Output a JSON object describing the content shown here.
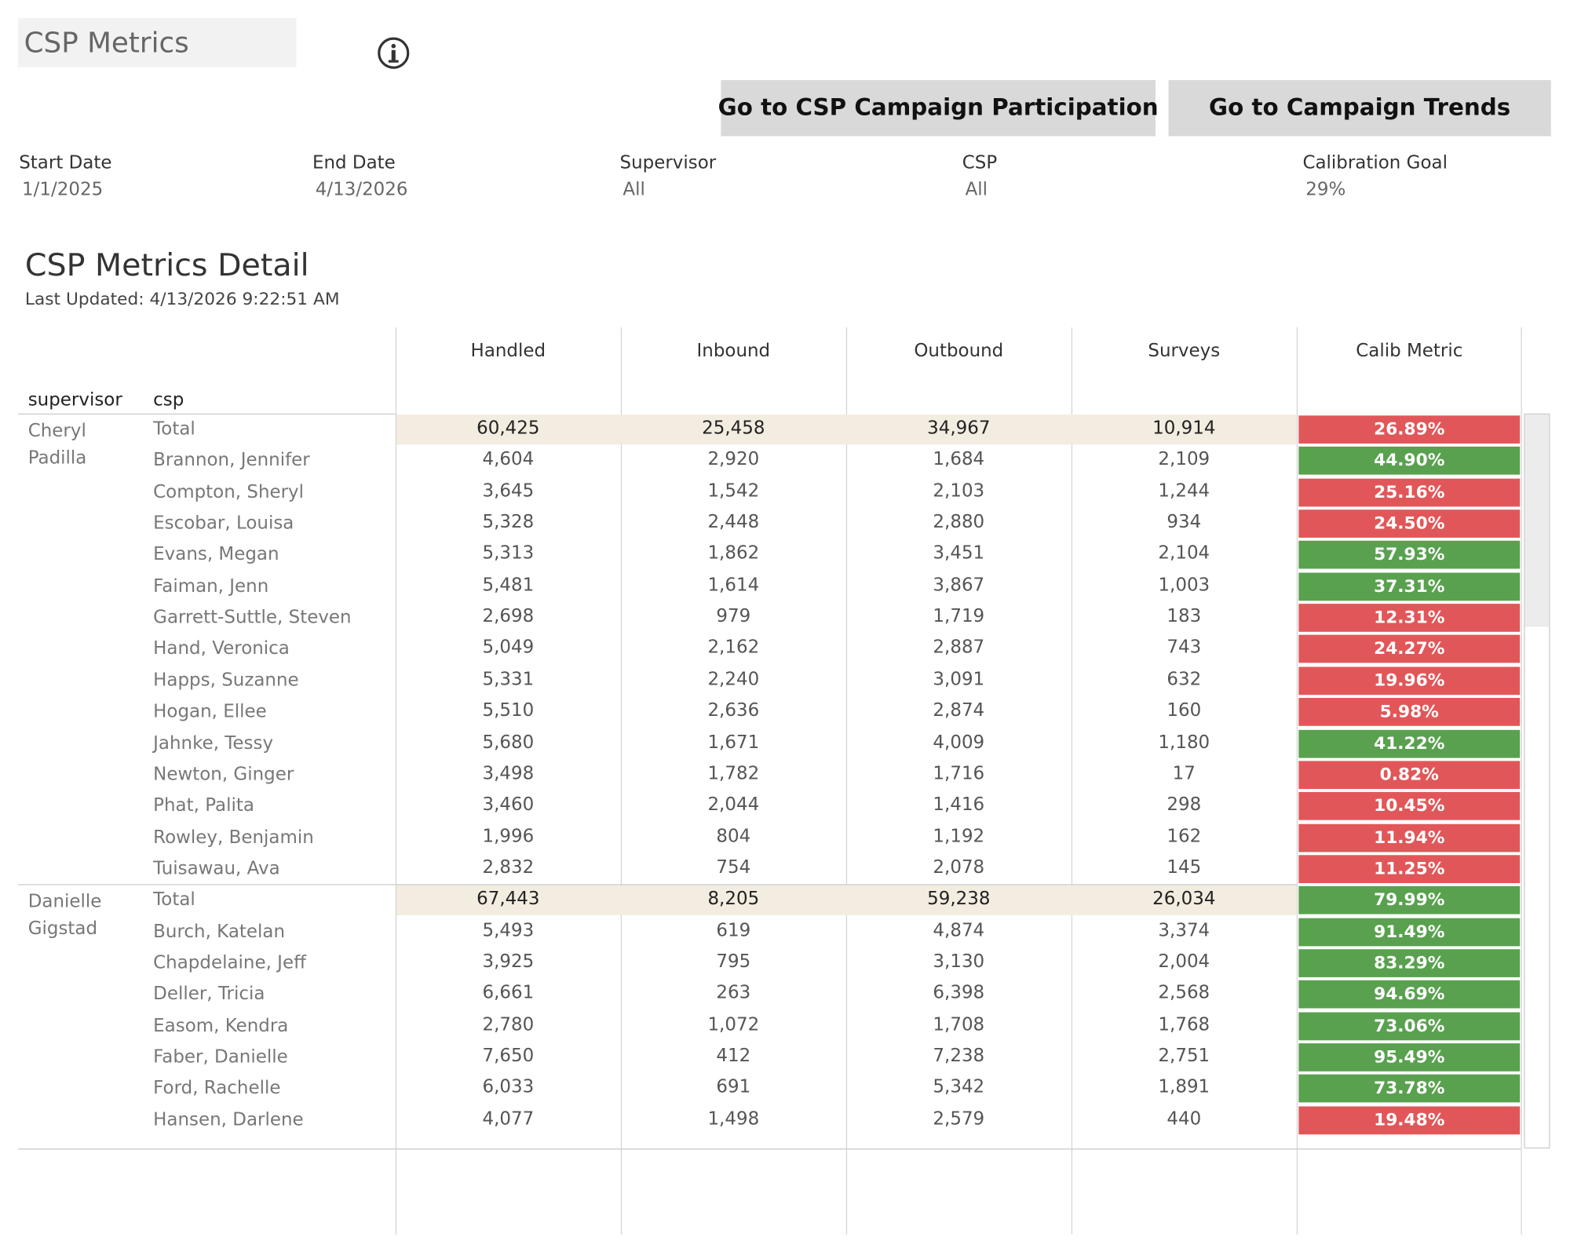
{
  "header": {
    "title": "CSP Metrics",
    "buttons": [
      "Go to CSP Campaign Participation",
      "Go to Campaign Trends"
    ]
  },
  "filters": [
    {
      "label": "Start Date",
      "value": "1/1/2025"
    },
    {
      "label": "End Date",
      "value": "4/13/2026"
    },
    {
      "label": "Supervisor",
      "value": "All"
    },
    {
      "label": "CSP",
      "value": "All"
    },
    {
      "label": "Calibration Goal",
      "value": "29%"
    }
  ],
  "table": {
    "title": "CSP Metrics Detail",
    "updated": "Last Updated: 4/13/2026 9:22:51 AM",
    "row_headers": [
      "supervisor",
      "csp"
    ],
    "columns": [
      "Handled",
      "Inbound",
      "Outbound",
      "Surveys",
      "Calib Metric"
    ],
    "total_color": "#f3ece0",
    "groups": [
      {
        "supervisor": "Cheryl Padilla",
        "rows": [
          {
            "csp": "Total",
            "values": [
              "60,425",
              "25,458",
              "34,967",
              "10,914"
            ],
            "calib": "26.89%",
            "calib_color": "#e15759"
          },
          {
            "csp": "Brannon, Jennifer",
            "values": [
              "4,604",
              "2,920",
              "1,684",
              "2,109"
            ],
            "calib": "44.90%",
            "calib_color": "#59a14f"
          },
          {
            "csp": "Compton, Sheryl",
            "values": [
              "3,645",
              "1,542",
              "2,103",
              "1,244"
            ],
            "calib": "25.16%",
            "calib_color": "#e15759"
          },
          {
            "csp": "Escobar, Louisa",
            "values": [
              "5,328",
              "2,448",
              "2,880",
              "934"
            ],
            "calib": "24.50%",
            "calib_color": "#e15759"
          },
          {
            "csp": "Evans, Megan",
            "values": [
              "5,313",
              "1,862",
              "3,451",
              "2,104"
            ],
            "calib": "57.93%",
            "calib_color": "#59a14f"
          },
          {
            "csp": "Faiman, Jenn",
            "values": [
              "5,481",
              "1,614",
              "3,867",
              "1,003"
            ],
            "calib": "37.31%",
            "calib_color": "#59a14f"
          },
          {
            "csp": "Garrett-Suttle, Steven",
            "values": [
              "2,698",
              "979",
              "1,719",
              "183"
            ],
            "calib": "12.31%",
            "calib_color": "#e15759"
          },
          {
            "csp": "Hand, Veronica",
            "values": [
              "5,049",
              "2,162",
              "2,887",
              "743"
            ],
            "calib": "24.27%",
            "calib_color": "#e15759"
          },
          {
            "csp": "Happs, Suzanne",
            "values": [
              "5,331",
              "2,240",
              "3,091",
              "632"
            ],
            "calib": "19.96%",
            "calib_color": "#e15759"
          },
          {
            "csp": "Hogan, Ellee",
            "values": [
              "5,510",
              "2,636",
              "2,874",
              "160"
            ],
            "calib": "5.98%",
            "calib_color": "#e15759"
          },
          {
            "csp": "Jahnke, Tessy",
            "values": [
              "5,680",
              "1,671",
              "4,009",
              "1,180"
            ],
            "calib": "41.22%",
            "calib_color": "#59a14f"
          },
          {
            "csp": "Newton, Ginger",
            "values": [
              "3,498",
              "1,782",
              "1,716",
              "17"
            ],
            "calib": "0.82%",
            "calib_color": "#e15759"
          },
          {
            "csp": "Phat, Palita",
            "values": [
              "3,460",
              "2,044",
              "1,416",
              "298"
            ],
            "calib": "10.45%",
            "calib_color": "#e15759"
          },
          {
            "csp": "Rowley, Benjamin",
            "values": [
              "1,996",
              "804",
              "1,192",
              "162"
            ],
            "calib": "11.94%",
            "calib_color": "#e15759"
          },
          {
            "csp": "Tuisawau, Ava",
            "values": [
              "2,832",
              "754",
              "2,078",
              "145"
            ],
            "calib": "11.25%",
            "calib_color": "#e15759"
          }
        ]
      },
      {
        "supervisor": "Danielle Gigstad",
        "rows": [
          {
            "csp": "Total",
            "values": [
              "67,443",
              "8,205",
              "59,238",
              "26,034"
            ],
            "calib": "79.99%",
            "calib_color": "#59a14f"
          },
          {
            "csp": "Burch, Katelan",
            "values": [
              "5,493",
              "619",
              "4,874",
              "3,374"
            ],
            "calib": "91.49%",
            "calib_color": "#59a14f"
          },
          {
            "csp": "Chapdelaine, Jeff",
            "values": [
              "3,925",
              "795",
              "3,130",
              "2,004"
            ],
            "calib": "83.29%",
            "calib_color": "#59a14f"
          },
          {
            "csp": "Deller, Tricia",
            "values": [
              "6,661",
              "263",
              "6,398",
              "2,568"
            ],
            "calib": "94.69%",
            "calib_color": "#59a14f"
          },
          {
            "csp": "Easom, Kendra",
            "values": [
              "2,780",
              "1,072",
              "1,708",
              "1,768"
            ],
            "calib": "73.06%",
            "calib_color": "#59a14f"
          },
          {
            "csp": "Faber, Danielle",
            "values": [
              "7,650",
              "412",
              "7,238",
              "2,751"
            ],
            "calib": "95.49%",
            "calib_color": "#59a14f"
          },
          {
            "csp": "Ford, Rachelle",
            "values": [
              "6,033",
              "691",
              "5,342",
              "1,891"
            ],
            "calib": "73.78%",
            "calib_color": "#59a14f"
          },
          {
            "csp": "Hansen, Darlene",
            "values": [
              "4,077",
              "1,498",
              "2,579",
              "440"
            ],
            "calib": "19.48%",
            "calib_color": "#e15759"
          }
        ]
      }
    ]
  }
}
